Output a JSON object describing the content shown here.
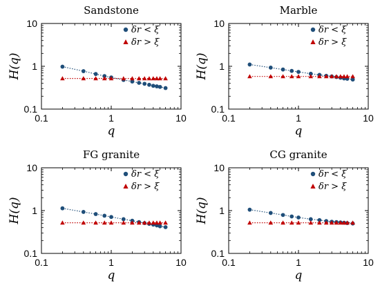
{
  "colors": {
    "blue": "#1f4e79",
    "red": "#c00000",
    "frame": "#000000"
  },
  "axis": {
    "xlabel": "q",
    "ylabel": "H(q)",
    "xlim": [
      0.1,
      10
    ],
    "ylim": [
      0.1,
      10
    ],
    "xscale": "log",
    "yscale": "log",
    "xticks": [
      "0.1",
      "1",
      "10"
    ],
    "yticks": [
      "0.1",
      "1",
      "10"
    ]
  },
  "legend_labels": [
    "δr < ξ",
    "δr > ξ"
  ],
  "chart_data": [
    {
      "type": "scatter",
      "title": "Sandstone",
      "xlabel": "q",
      "ylabel": "H(q)",
      "xlim": [
        0.1,
        10
      ],
      "ylim": [
        0.1,
        10
      ],
      "scale": "log-log",
      "legend": "top-right",
      "series": [
        {
          "name": "δr < ξ",
          "marker": "circle",
          "color": "#1f4e79",
          "x": [
            0.2,
            0.4,
            0.6,
            0.8,
            1.0,
            1.5,
            2.0,
            2.5,
            3.0,
            3.5,
            4.0,
            4.5,
            5.0,
            6.0
          ],
          "y": [
            0.98,
            0.77,
            0.66,
            0.59,
            0.55,
            0.48,
            0.44,
            0.41,
            0.39,
            0.37,
            0.35,
            0.34,
            0.33,
            0.31
          ]
        },
        {
          "name": "δr > ξ",
          "marker": "triangle",
          "color": "#c00000",
          "x": [
            0.2,
            0.4,
            0.6,
            0.8,
            1.0,
            1.5,
            2.0,
            2.5,
            3.0,
            3.5,
            4.0,
            4.5,
            5.0,
            6.0
          ],
          "y": [
            0.52,
            0.52,
            0.52,
            0.52,
            0.52,
            0.52,
            0.52,
            0.52,
            0.52,
            0.52,
            0.52,
            0.52,
            0.52,
            0.52
          ]
        }
      ]
    },
    {
      "type": "scatter",
      "title": "Marble",
      "xlabel": "q",
      "ylabel": "H(q)",
      "xlim": [
        0.1,
        10
      ],
      "ylim": [
        0.1,
        10
      ],
      "scale": "log-log",
      "legend": "top-right",
      "series": [
        {
          "name": "δr < ξ",
          "marker": "circle",
          "color": "#1f4e79",
          "x": [
            0.2,
            0.4,
            0.6,
            0.8,
            1.0,
            1.5,
            2.0,
            2.5,
            3.0,
            3.5,
            4.0,
            4.5,
            5.0,
            6.0
          ],
          "y": [
            1.1,
            0.93,
            0.84,
            0.78,
            0.74,
            0.67,
            0.63,
            0.6,
            0.58,
            0.56,
            0.54,
            0.52,
            0.51,
            0.49
          ]
        },
        {
          "name": "δr > ξ",
          "marker": "triangle",
          "color": "#c00000",
          "x": [
            0.2,
            0.4,
            0.6,
            0.8,
            1.0,
            1.5,
            2.0,
            2.5,
            3.0,
            3.5,
            4.0,
            4.5,
            5.0,
            6.0
          ],
          "y": [
            0.58,
            0.58,
            0.58,
            0.58,
            0.58,
            0.58,
            0.58,
            0.58,
            0.58,
            0.58,
            0.58,
            0.58,
            0.58,
            0.58
          ]
        }
      ]
    },
    {
      "type": "scatter",
      "title": "FG granite",
      "xlabel": "q",
      "ylabel": "H(q)",
      "xlim": [
        0.1,
        10
      ],
      "ylim": [
        0.1,
        10
      ],
      "scale": "log-log",
      "legend": "top-right",
      "series": [
        {
          "name": "δr < ξ",
          "marker": "circle",
          "color": "#1f4e79",
          "x": [
            0.2,
            0.4,
            0.6,
            0.8,
            1.0,
            1.5,
            2.0,
            2.5,
            3.0,
            3.5,
            4.0,
            4.5,
            5.0,
            6.0
          ],
          "y": [
            1.13,
            0.93,
            0.83,
            0.76,
            0.71,
            0.63,
            0.58,
            0.54,
            0.51,
            0.49,
            0.47,
            0.45,
            0.43,
            0.41
          ]
        },
        {
          "name": "δr > ξ",
          "marker": "triangle",
          "color": "#c00000",
          "x": [
            0.2,
            0.4,
            0.6,
            0.8,
            1.0,
            1.5,
            2.0,
            2.5,
            3.0,
            3.5,
            4.0,
            4.5,
            5.0,
            6.0
          ],
          "y": [
            0.52,
            0.52,
            0.52,
            0.52,
            0.52,
            0.52,
            0.52,
            0.52,
            0.52,
            0.52,
            0.52,
            0.52,
            0.52,
            0.52
          ]
        }
      ]
    },
    {
      "type": "scatter",
      "title": "CG granite",
      "xlabel": "q",
      "ylabel": "H(q)",
      "xlim": [
        0.1,
        10
      ],
      "ylim": [
        0.1,
        10
      ],
      "scale": "log-log",
      "legend": "top-right",
      "series": [
        {
          "name": "δr < ξ",
          "marker": "circle",
          "color": "#1f4e79",
          "x": [
            0.2,
            0.4,
            0.6,
            0.8,
            1.0,
            1.5,
            2.0,
            2.5,
            3.0,
            3.5,
            4.0,
            4.5,
            5.0,
            6.0
          ],
          "y": [
            1.05,
            0.88,
            0.79,
            0.73,
            0.69,
            0.63,
            0.6,
            0.57,
            0.55,
            0.54,
            0.53,
            0.52,
            0.51,
            0.5
          ]
        },
        {
          "name": "δr > ξ",
          "marker": "triangle",
          "color": "#c00000",
          "x": [
            0.2,
            0.4,
            0.6,
            0.8,
            1.0,
            1.5,
            2.0,
            2.5,
            3.0,
            3.5,
            4.0,
            4.5,
            5.0,
            6.0
          ],
          "y": [
            0.52,
            0.52,
            0.52,
            0.52,
            0.52,
            0.52,
            0.52,
            0.52,
            0.52,
            0.52,
            0.52,
            0.52,
            0.52,
            0.52
          ]
        }
      ]
    }
  ]
}
